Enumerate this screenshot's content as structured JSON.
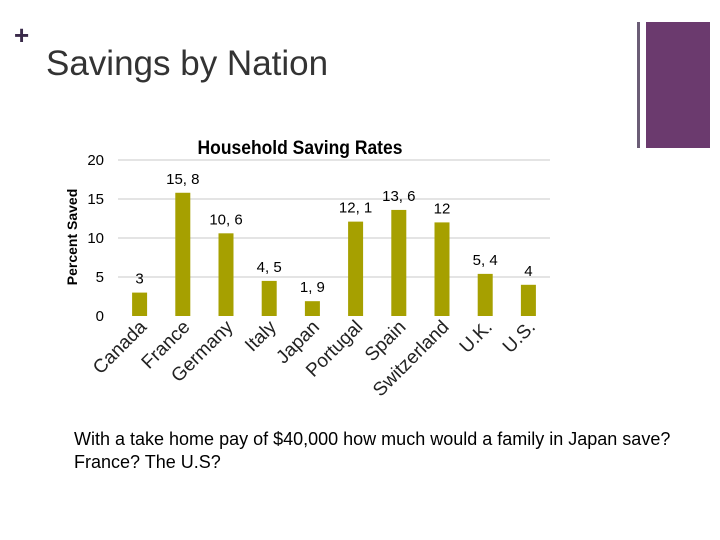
{
  "slide": {
    "plus_mark": "+",
    "title": "Savings by Nation",
    "caption": "With a take home pay of $40,000 how much would a family in Japan save? France? The U.S?"
  },
  "colors": {
    "bar": "#a6a000",
    "gridline": "#c8c8c8",
    "accent": "#6b3a6e"
  },
  "chart_data": {
    "type": "bar",
    "title": "Household Saving Rates",
    "xlabel": "",
    "ylabel": "Percent Saved",
    "ylim": [
      0,
      20
    ],
    "yticks": [
      0,
      5,
      10,
      15,
      20
    ],
    "grid": true,
    "categories": [
      "Canada",
      "France",
      "Germany",
      "Italy",
      "Japan",
      "Portugal",
      "Spain",
      "Switzerland",
      "U.K.",
      "U.S."
    ],
    "values": [
      3,
      15.8,
      10.6,
      4.5,
      1.9,
      12.1,
      13.6,
      12,
      5.4,
      4
    ],
    "data_labels": [
      "3",
      "15, 8",
      "10, 6",
      "4, 5",
      "1, 9",
      "12, 1",
      "13, 6",
      "12",
      "5, 4",
      "4"
    ]
  }
}
